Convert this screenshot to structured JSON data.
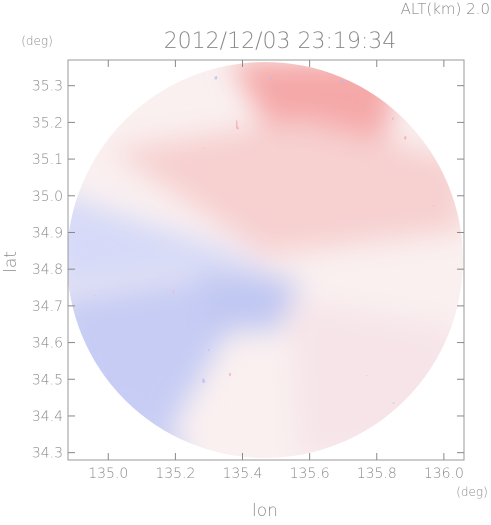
{
  "chart_data": {
    "type": "image",
    "title": "2012/12/03 23:19:34",
    "subtitle": "ALT(km) 2.0",
    "x_label": "lon",
    "y_label": "lat",
    "x_unit": "(deg)",
    "y_unit": "(deg)",
    "xlim": [
      134.88,
      136.06
    ],
    "ylim": [
      34.28,
      35.37
    ],
    "xticks": [
      {
        "value": 135,
        "label": "135.0"
      },
      135.2,
      135.4,
      135.6,
      135.8,
      {
        "value": 136,
        "label": "136.0"
      }
    ],
    "yticks": [
      34.3,
      34.4,
      34.5,
      34.6,
      34.7,
      34.8,
      34.9,
      {
        "value": 35,
        "label": "35.0"
      },
      35.1,
      35.2,
      35.3
    ]
  }
}
